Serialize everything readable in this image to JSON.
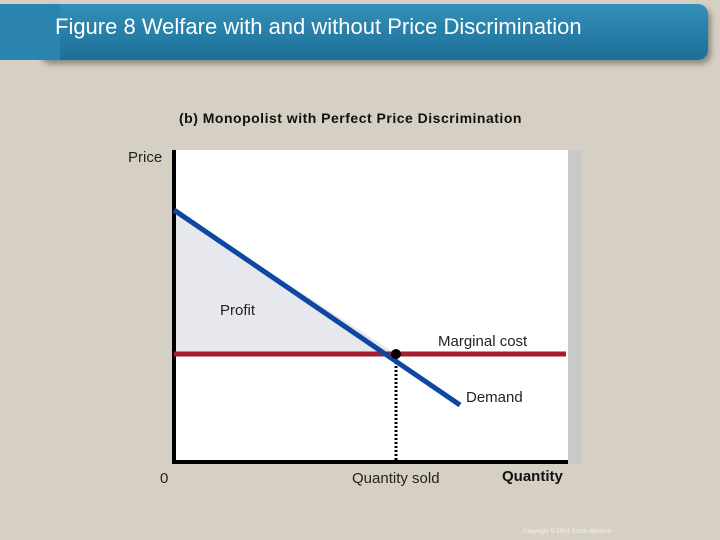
{
  "header": {
    "title": "Figure 8 Welfare with and without Price Discrimination"
  },
  "panel": {
    "subtitle": "(b) Monopolist with Perfect Price Discrimination"
  },
  "diagram": {
    "y_axis_label": "Price",
    "x_axis_label": "Quantity",
    "origin_label": "0",
    "region_label": "Profit",
    "curves": {
      "marginal_cost": {
        "label": "Marginal cost",
        "color": "#a51c30"
      },
      "demand": {
        "label": "Demand",
        "color": "#0d47a1"
      }
    },
    "quantity_marker_label": "Quantity sold",
    "profit_fill_color": "#e6e8ed",
    "plot_background": "#ffffff"
  },
  "footer": {
    "copyright": "Copyright © 2004 South-Western"
  }
}
